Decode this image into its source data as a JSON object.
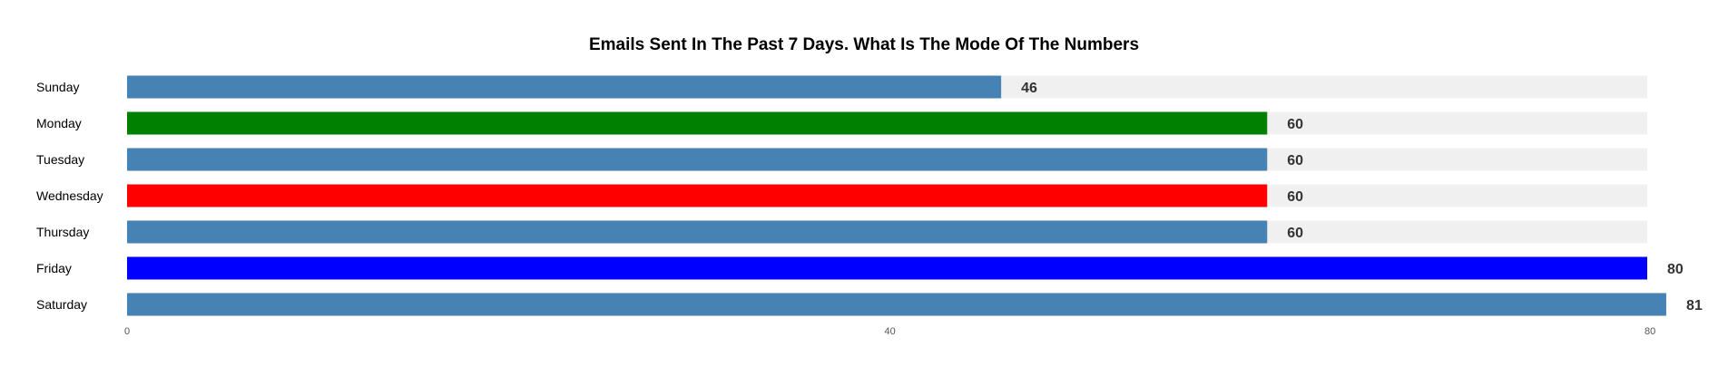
{
  "chart_data": {
    "type": "bar",
    "orientation": "horizontal",
    "title": "Emails Sent In The Past 7 Days. What Is The Mode Of The Numbers",
    "xlabel": "",
    "ylabel": "",
    "categories": [
      "Sunday",
      "Monday",
      "Tuesday",
      "Wednesday",
      "Thursday",
      "Friday",
      "Saturday"
    ],
    "values": [
      46,
      60,
      60,
      60,
      60,
      80,
      81
    ],
    "bar_colors": [
      "#4682b4",
      "#008000",
      "#4682b4",
      "#ff0000",
      "#4682b4",
      "#0000ff",
      "#4682b4"
    ],
    "track_color": "#f0f0f0",
    "xlim": [
      0,
      80
    ],
    "ticks": [
      0,
      40,
      80
    ],
    "tick_labels": [
      "0",
      "40",
      "80"
    ],
    "grid": false,
    "legend": false
  }
}
